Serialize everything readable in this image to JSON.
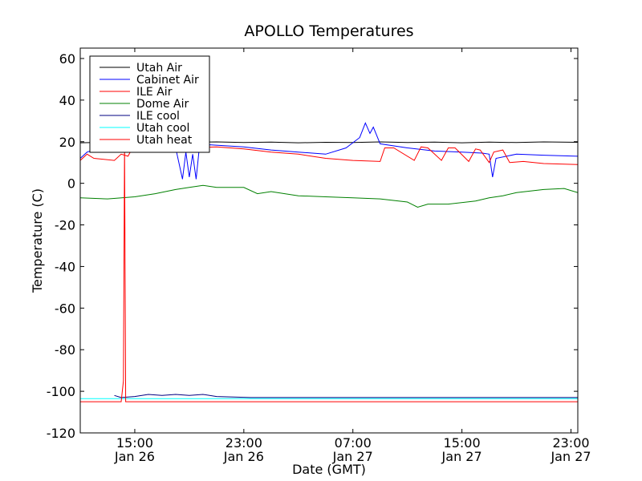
{
  "chart_data": {
    "type": "line",
    "title": "APOLLO Temperatures",
    "xlabel": "Date (GMT)",
    "ylabel": "Temperature (C)",
    "ylim": [
      -120,
      65
    ],
    "xlim": [
      "2012-01-26T11:00",
      "2012-01-27T23:30"
    ],
    "x_ticks": [
      {
        "t": "2012-01-26T15:00",
        "time": "15:00",
        "date": "Jan 26"
      },
      {
        "t": "2012-01-26T23:00",
        "time": "23:00",
        "date": "Jan 26"
      },
      {
        "t": "2012-01-27T07:00",
        "time": "07:00",
        "date": "Jan 27"
      },
      {
        "t": "2012-01-27T15:00",
        "time": "15:00",
        "date": "Jan 27"
      },
      {
        "t": "2012-01-27T23:00",
        "time": "23:00",
        "date": "Jan 27"
      }
    ],
    "y_ticks": [
      60,
      40,
      20,
      0,
      -20,
      -40,
      -60,
      -80,
      -100,
      -120
    ],
    "grid": false,
    "legend_position": "top-left",
    "series": [
      {
        "name": "Utah Air",
        "color": "#000000",
        "points": [
          [
            "2012-01-26T11:00",
            19.5
          ],
          [
            "2012-01-26T13:00",
            19.8
          ],
          [
            "2012-01-26T15:00",
            19.6
          ],
          [
            "2012-01-26T17:00",
            20.0
          ],
          [
            "2012-01-26T19:00",
            19.7
          ],
          [
            "2012-01-26T21:00",
            19.9
          ],
          [
            "2012-01-26T23:00",
            19.6
          ],
          [
            "2012-01-27T01:00",
            19.8
          ],
          [
            "2012-01-27T03:00",
            19.5
          ],
          [
            "2012-01-27T05:00",
            19.7
          ],
          [
            "2012-01-27T07:00",
            19.6
          ],
          [
            "2012-01-27T09:00",
            19.9
          ],
          [
            "2012-01-27T11:00",
            19.6
          ],
          [
            "2012-01-27T13:00",
            19.8
          ],
          [
            "2012-01-27T15:00",
            19.5
          ],
          [
            "2012-01-27T17:00",
            19.8
          ],
          [
            "2012-01-27T19:00",
            19.6
          ],
          [
            "2012-01-27T21:00",
            19.9
          ],
          [
            "2012-01-27T23:30",
            19.7
          ]
        ]
      },
      {
        "name": "Cabinet Air",
        "color": "#0000ff",
        "points": [
          [
            "2012-01-26T11:00",
            12
          ],
          [
            "2012-01-26T11:30",
            15
          ],
          [
            "2012-01-26T12:30",
            17
          ],
          [
            "2012-01-26T14:00",
            18
          ],
          [
            "2012-01-26T15:30",
            18.5
          ],
          [
            "2012-01-26T17:00",
            18.5
          ],
          [
            "2012-01-26T18:00",
            17
          ],
          [
            "2012-01-26T18:30",
            2
          ],
          [
            "2012-01-26T18:45",
            15
          ],
          [
            "2012-01-26T19:00",
            3
          ],
          [
            "2012-01-26T19:15",
            14
          ],
          [
            "2012-01-26T19:30",
            2
          ],
          [
            "2012-01-26T19:45",
            18
          ],
          [
            "2012-01-26T20:30",
            18.5
          ],
          [
            "2012-01-26T23:00",
            17.5
          ],
          [
            "2012-01-27T01:00",
            16
          ],
          [
            "2012-01-27T03:00",
            15
          ],
          [
            "2012-01-27T05:00",
            14
          ],
          [
            "2012-01-27T06:30",
            17
          ],
          [
            "2012-01-27T07:30",
            22
          ],
          [
            "2012-01-27T07:55",
            29
          ],
          [
            "2012-01-27T08:15",
            24
          ],
          [
            "2012-01-27T08:30",
            27
          ],
          [
            "2012-01-27T09:00",
            19
          ],
          [
            "2012-01-27T11:00",
            17
          ],
          [
            "2012-01-27T13:00",
            15.5
          ],
          [
            "2012-01-27T15:00",
            15
          ],
          [
            "2012-01-27T16:30",
            14.5
          ],
          [
            "2012-01-27T17:00",
            14
          ],
          [
            "2012-01-27T17:15",
            3
          ],
          [
            "2012-01-27T17:30",
            12
          ],
          [
            "2012-01-27T19:00",
            14
          ],
          [
            "2012-01-27T21:00",
            13.5
          ],
          [
            "2012-01-27T23:30",
            13
          ]
        ]
      },
      {
        "name": "ILE Air",
        "color": "#ff0000",
        "points": [
          [
            "2012-01-26T11:00",
            11
          ],
          [
            "2012-01-26T11:30",
            14
          ],
          [
            "2012-01-26T12:00",
            12
          ],
          [
            "2012-01-26T13:30",
            11
          ],
          [
            "2012-01-26T14:00",
            14
          ],
          [
            "2012-01-26T14:30",
            13
          ],
          [
            "2012-01-26T15:00",
            19
          ],
          [
            "2012-01-26T15:30",
            18
          ],
          [
            "2012-01-26T17:00",
            18
          ],
          [
            "2012-01-26T19:00",
            17
          ],
          [
            "2012-01-26T21:00",
            17.5
          ],
          [
            "2012-01-26T23:00",
            16.5
          ],
          [
            "2012-01-27T01:00",
            15
          ],
          [
            "2012-01-27T03:00",
            14
          ],
          [
            "2012-01-27T05:00",
            12
          ],
          [
            "2012-01-27T07:00",
            11
          ],
          [
            "2012-01-27T09:00",
            10.5
          ],
          [
            "2012-01-27T09:20",
            17
          ],
          [
            "2012-01-27T10:00",
            17
          ],
          [
            "2012-01-27T11:30",
            11
          ],
          [
            "2012-01-27T12:00",
            17.5
          ],
          [
            "2012-01-27T12:30",
            17
          ],
          [
            "2012-01-27T13:30",
            11
          ],
          [
            "2012-01-27T14:00",
            17
          ],
          [
            "2012-01-27T14:30",
            17
          ],
          [
            "2012-01-27T15:30",
            10.5
          ],
          [
            "2012-01-27T16:00",
            16.5
          ],
          [
            "2012-01-27T16:20",
            16
          ],
          [
            "2012-01-27T17:00",
            10
          ],
          [
            "2012-01-27T17:20",
            15
          ],
          [
            "2012-01-27T18:00",
            16
          ],
          [
            "2012-01-27T18:30",
            10
          ],
          [
            "2012-01-27T19:30",
            10.5
          ],
          [
            "2012-01-27T21:00",
            9.5
          ],
          [
            "2012-01-27T23:30",
            9
          ]
        ]
      },
      {
        "name": "Dome Air",
        "color": "#008000",
        "points": [
          [
            "2012-01-26T11:00",
            -7
          ],
          [
            "2012-01-26T13:00",
            -7.5
          ],
          [
            "2012-01-26T15:00",
            -6.5
          ],
          [
            "2012-01-26T16:30",
            -5
          ],
          [
            "2012-01-26T18:00",
            -3
          ],
          [
            "2012-01-26T19:00",
            -2
          ],
          [
            "2012-01-26T20:00",
            -1
          ],
          [
            "2012-01-26T21:00",
            -2
          ],
          [
            "2012-01-26T23:00",
            -2
          ],
          [
            "2012-01-27T00:00",
            -5
          ],
          [
            "2012-01-27T01:00",
            -4
          ],
          [
            "2012-01-27T03:00",
            -6
          ],
          [
            "2012-01-27T05:00",
            -6.5
          ],
          [
            "2012-01-27T07:00",
            -7
          ],
          [
            "2012-01-27T09:00",
            -7.5
          ],
          [
            "2012-01-27T11:00",
            -9
          ],
          [
            "2012-01-27T11:45",
            -11.5
          ],
          [
            "2012-01-27T12:30",
            -10
          ],
          [
            "2012-01-27T14:00",
            -10
          ],
          [
            "2012-01-27T16:00",
            -8.5
          ],
          [
            "2012-01-27T17:00",
            -7
          ],
          [
            "2012-01-27T18:00",
            -6
          ],
          [
            "2012-01-27T19:00",
            -4.5
          ],
          [
            "2012-01-27T21:00",
            -3
          ],
          [
            "2012-01-27T22:30",
            -2.5
          ],
          [
            "2012-01-27T23:30",
            -4.5
          ]
        ]
      },
      {
        "name": "ILE cool",
        "color": "#000080",
        "points": [
          [
            "2012-01-26T13:30",
            -102
          ],
          [
            "2012-01-26T14:00",
            -103
          ],
          [
            "2012-01-26T15:00",
            -102.5
          ],
          [
            "2012-01-26T16:00",
            -101.5
          ],
          [
            "2012-01-26T17:00",
            -102
          ],
          [
            "2012-01-26T18:00",
            -101.5
          ],
          [
            "2012-01-26T19:00",
            -102
          ],
          [
            "2012-01-26T20:00",
            -101.5
          ],
          [
            "2012-01-26T21:00",
            -102.5
          ],
          [
            "2012-01-26T23:30",
            -103
          ],
          [
            "2012-01-27T05:00",
            -103
          ],
          [
            "2012-01-27T12:00",
            -103
          ],
          [
            "2012-01-27T18:00",
            -103
          ],
          [
            "2012-01-27T23:30",
            -103
          ]
        ]
      },
      {
        "name": "Utah cool",
        "color": "#00ffff",
        "points": [
          [
            "2012-01-26T11:00",
            -103.5
          ],
          [
            "2012-01-26T15:00",
            -103.5
          ],
          [
            "2012-01-26T19:00",
            -103.5
          ],
          [
            "2012-01-26T23:00",
            -103.5
          ],
          [
            "2012-01-27T03:00",
            -103.5
          ],
          [
            "2012-01-27T07:00",
            -103.5
          ],
          [
            "2012-01-27T11:00",
            -103.5
          ],
          [
            "2012-01-27T15:00",
            -103.5
          ],
          [
            "2012-01-27T19:00",
            -103.5
          ],
          [
            "2012-01-27T23:30",
            -103.5
          ]
        ]
      },
      {
        "name": "Utah heat",
        "color": "#ff0000",
        "points": [
          [
            "2012-01-26T11:00",
            -105
          ],
          [
            "2012-01-26T14:00",
            -105
          ],
          [
            "2012-01-26T14:05",
            -100
          ],
          [
            "2012-01-26T14:10",
            -95
          ],
          [
            "2012-01-26T14:15",
            19
          ],
          [
            "2012-01-26T14:20",
            -105
          ],
          [
            "2012-01-26T17:00",
            -105
          ],
          [
            "2012-01-26T21:00",
            -105
          ],
          [
            "2012-01-27T01:00",
            -105
          ],
          [
            "2012-01-27T05:00",
            -105
          ],
          [
            "2012-01-27T09:00",
            -105
          ],
          [
            "2012-01-27T13:00",
            -105
          ],
          [
            "2012-01-27T17:00",
            -105
          ],
          [
            "2012-01-27T21:00",
            -105
          ],
          [
            "2012-01-27T23:30",
            -105
          ]
        ]
      }
    ]
  }
}
